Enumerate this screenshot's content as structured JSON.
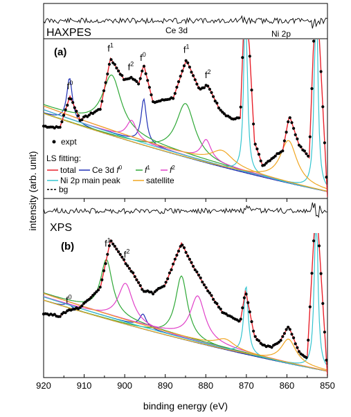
{
  "chart_data": {
    "type": "line",
    "xlabel": "binding energy (eV)",
    "ylabel": "intensity (arb. unit)",
    "xlim": [
      920,
      850
    ],
    "x_reversed": true,
    "xticks": [
      920,
      910,
      900,
      890,
      880,
      870,
      860,
      850
    ],
    "grid": false,
    "legend": {
      "placement": "left, middle of panel (a)",
      "expt_label": "expt",
      "title": "LS fitting:",
      "entries": [
        {
          "label": "total",
          "color": "#e8202a"
        },
        {
          "label": "Ce 3d",
          "suffix": "f",
          "sup": "0",
          "color": "#1f2fb5"
        },
        {
          "label": "f",
          "sup": "1",
          "color": "#2ea836"
        },
        {
          "label": "f",
          "sup": "2",
          "color": "#e040c8"
        },
        {
          "label": "Ni 2p main peak",
          "color": "#33c4cf"
        },
        {
          "label": "satellite",
          "color": "#f0a520"
        },
        {
          "label": "bg",
          "color": "#000000",
          "dashed": true
        }
      ]
    },
    "panels": [
      {
        "id": "a",
        "label": "(a)",
        "method": "HAXPES",
        "residual_labels": [
          "Ce 3d",
          "Ni 2p"
        ],
        "peak_labels": [
          {
            "text": "f",
            "sup": "0",
            "x": 913.5
          },
          {
            "text": "f",
            "sup": "1",
            "x": 903.5
          },
          {
            "text": "f",
            "sup": "2",
            "x": 898.5
          },
          {
            "text": "f",
            "sup": "0",
            "x": 895.5
          },
          {
            "text": "f",
            "sup": "1",
            "x": 884.8
          },
          {
            "text": "f",
            "sup": "2",
            "x": 879.5
          }
        ],
        "expt_shape": {
          "baseline": 0.62,
          "points": [
            [
              920,
              0.45
            ],
            [
              916,
              0.44
            ],
            [
              913.5,
              0.64
            ],
            [
              911,
              0.49
            ],
            [
              906,
              0.56
            ],
            [
              903.5,
              0.88
            ],
            [
              900,
              0.74
            ],
            [
              898.5,
              0.76
            ],
            [
              896.5,
              0.72
            ],
            [
              895.3,
              0.84
            ],
            [
              893,
              0.6
            ],
            [
              888,
              0.63
            ],
            [
              884.8,
              0.87
            ],
            [
              881.5,
              0.68
            ],
            [
              879.5,
              0.71
            ],
            [
              876.5,
              0.55
            ],
            [
              874,
              0.5
            ],
            [
              871.5,
              0.5
            ],
            [
              870.2,
              1.4
            ],
            [
              868,
              0.35
            ],
            [
              866,
              0.2
            ],
            [
              864,
              0.24
            ],
            [
              861,
              0.3
            ],
            [
              859.4,
              0.52
            ],
            [
              857,
              0.33
            ],
            [
              854.5,
              0.25
            ],
            [
              852.8,
              1.4
            ],
            [
              850,
              0.0
            ]
          ]
        },
        "components": [
          {
            "name": "Ce 3d f0 (913.5)",
            "color": "#1f2fb5",
            "center": 913.6,
            "fwhm": 1.7,
            "amp": 0.28
          },
          {
            "name": "Ce 3d f0 (895.5)",
            "color": "#1f2fb5",
            "center": 895.3,
            "fwhm": 1.6,
            "amp": 0.28
          },
          {
            "name": "f1 (903.5)",
            "color": "#2ea836",
            "center": 903.2,
            "fwhm": 5.6,
            "amp": 0.35
          },
          {
            "name": "f1 (884.8)",
            "color": "#2ea836",
            "center": 885.0,
            "fwhm": 5.6,
            "amp": 0.34
          },
          {
            "name": "f2 (898.3)",
            "color": "#e040c8",
            "center": 898.3,
            "fwhm": 3.0,
            "amp": 0.12
          },
          {
            "name": "f2 (880.0)",
            "color": "#e040c8",
            "center": 879.9,
            "fwhm": 3.0,
            "amp": 0.13
          },
          {
            "name": "Ni 2p main (870.2)",
            "color": "#33c4cf",
            "center": 870.2,
            "fwhm": 0.9,
            "amp": 1.3
          },
          {
            "name": "Ni 2p main (852.8)",
            "color": "#33c4cf",
            "center": 852.8,
            "fwhm": 0.9,
            "amp": 1.5
          },
          {
            "name": "satellite (876.5)",
            "color": "#f0a520",
            "center": 876.0,
            "fwhm": 6.5,
            "amp": 0.09
          },
          {
            "name": "satellite (859.4)",
            "color": "#f0a520",
            "center": 859.6,
            "fwhm": 5.0,
            "amp": 0.27
          }
        ]
      },
      {
        "id": "b",
        "label": "(b)",
        "method": "XPS",
        "peak_labels": [
          {
            "text": "f",
            "sup": "0",
            "x": 913.8
          },
          {
            "text": "f",
            "sup": "1",
            "x": 904.2
          },
          {
            "text": "f",
            "sup": "2",
            "x": 899.5
          }
        ],
        "expt_shape": {
          "baseline": 0.62,
          "points": [
            [
              920,
              0.44
            ],
            [
              916,
              0.42
            ],
            [
              914,
              0.46
            ],
            [
              911,
              0.48
            ],
            [
              906,
              0.62
            ],
            [
              903.5,
              0.95
            ],
            [
              900,
              0.8
            ],
            [
              898,
              0.72
            ],
            [
              895.5,
              0.6
            ],
            [
              893,
              0.58
            ],
            [
              890,
              0.64
            ],
            [
              886,
              0.93
            ],
            [
              883,
              0.76
            ],
            [
              880,
              0.62
            ],
            [
              876,
              0.45
            ],
            [
              873,
              0.4
            ],
            [
              871.5,
              0.38
            ],
            [
              870.2,
              0.6
            ],
            [
              868,
              0.28
            ],
            [
              866,
              0.22
            ],
            [
              864,
              0.2
            ],
            [
              862,
              0.23
            ],
            [
              859.6,
              0.35
            ],
            [
              857,
              0.17
            ],
            [
              855,
              0.13
            ],
            [
              852.8,
              1.25
            ],
            [
              850,
              0.0
            ]
          ]
        },
        "components": [
          {
            "name": "Ce 3d f0 (913.8)",
            "color": "#1f2fb5",
            "center": 914.0,
            "fwhm": 2.0,
            "amp": 0.03
          },
          {
            "name": "Ce 3d f0 (895.3)",
            "color": "#1f2fb5",
            "center": 895.5,
            "fwhm": 2.0,
            "amp": 0.09
          },
          {
            "name": "f1 (904.2)",
            "color": "#2ea836",
            "center": 904.5,
            "fwhm": 3.6,
            "amp": 0.38
          },
          {
            "name": "f1 (885.9)",
            "color": "#2ea836",
            "center": 886.0,
            "fwhm": 3.6,
            "amp": 0.44
          },
          {
            "name": "f2 (899.8)",
            "color": "#e040c8",
            "center": 899.8,
            "fwhm": 4.4,
            "amp": 0.27
          },
          {
            "name": "f2 (882.0)",
            "color": "#e040c8",
            "center": 882.0,
            "fwhm": 4.4,
            "amp": 0.31
          },
          {
            "name": "Ni 2p main (870.2)",
            "color": "#33c4cf",
            "center": 870.1,
            "fwhm": 1.3,
            "amp": 0.48
          },
          {
            "name": "Ni 2p main (852.8)",
            "color": "#33c4cf",
            "center": 852.8,
            "fwhm": 1.0,
            "amp": 1.2
          },
          {
            "name": "satellite (875.2)",
            "color": "#f0a520",
            "center": 875.2,
            "fwhm": 5.5,
            "amp": 0.06
          },
          {
            "name": "satellite (859.5)",
            "color": "#f0a520",
            "center": 859.6,
            "fwhm": 4.5,
            "amp": 0.17
          }
        ]
      }
    ]
  }
}
